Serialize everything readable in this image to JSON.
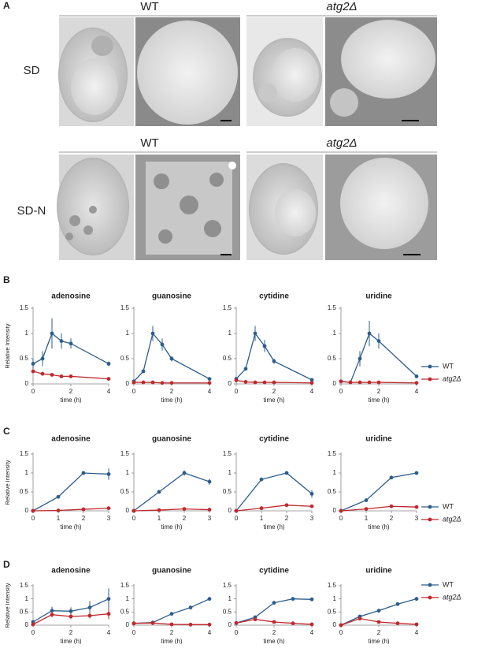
{
  "panel_a": {
    "label": "A",
    "rows": [
      {
        "condition": "SD",
        "groups": [
          "WT",
          "atg2Δ"
        ]
      },
      {
        "condition": "SD-N",
        "groups": [
          "WT",
          "atg2Δ"
        ]
      }
    ]
  },
  "panel_labels": [
    "B",
    "C",
    "D"
  ],
  "chart_data": [
    {
      "type": "line",
      "title": "adenosine",
      "y_label": "Relative Intensity",
      "x_label": "time (h)",
      "x": [
        0,
        0.5,
        1,
        1.5,
        2,
        4
      ],
      "xlim": [
        0,
        4
      ],
      "xticks": [
        0,
        2,
        4
      ],
      "ylim": [
        0,
        1.5
      ],
      "yticks": [
        0,
        0.5,
        1,
        1.5
      ],
      "series": [
        {
          "name": "WT",
          "color": "#2d5d8c",
          "values": [
            0.4,
            0.5,
            1.0,
            0.85,
            0.8,
            0.4
          ],
          "errors": [
            0.1,
            0.15,
            0.3,
            0.15,
            0.1,
            0.05
          ]
        },
        {
          "name": "atg2Δ",
          "color": "#c0282d",
          "values": [
            0.25,
            0.2,
            0.18,
            0.15,
            0.15,
            0.1
          ]
        }
      ]
    },
    {
      "type": "line",
      "title": "guanosine",
      "x_label": "time (h)",
      "x": [
        0,
        0.5,
        1,
        1.5,
        2,
        4
      ],
      "xlim": [
        0,
        4
      ],
      "xticks": [
        0,
        2,
        4
      ],
      "ylim": [
        0,
        1.5
      ],
      "yticks": [
        0,
        0.5,
        1,
        1.5
      ],
      "series": [
        {
          "name": "WT",
          "color": "#2d5d8c",
          "values": [
            0.05,
            0.25,
            1.0,
            0.78,
            0.5,
            0.1
          ],
          "errors": [
            0.02,
            0.03,
            0.15,
            0.12,
            0.05,
            0.02
          ]
        },
        {
          "name": "atg2Δ",
          "color": "#c0282d",
          "values": [
            0.03,
            0.03,
            0.03,
            0.02,
            0.02,
            0.02
          ]
        }
      ]
    },
    {
      "type": "line",
      "title": "cytidine",
      "x_label": "time (h)",
      "x": [
        0,
        0.5,
        1,
        1.5,
        2,
        4
      ],
      "xlim": [
        0,
        4
      ],
      "xticks": [
        0,
        2,
        4
      ],
      "ylim": [
        0,
        1.5
      ],
      "yticks": [
        0,
        0.5,
        1,
        1.5
      ],
      "series": [
        {
          "name": "WT",
          "color": "#2d5d8c",
          "values": [
            0.1,
            0.3,
            1.0,
            0.75,
            0.45,
            0.08
          ],
          "errors": [
            0.02,
            0.03,
            0.15,
            0.12,
            0.05,
            0.02
          ]
        },
        {
          "name": "atg2Δ",
          "color": "#c0282d",
          "values": [
            0.07,
            0.04,
            0.03,
            0.03,
            0.03,
            0.02
          ]
        }
      ]
    },
    {
      "type": "line",
      "title": "uridine",
      "x_label": "time (h)",
      "legend": "right",
      "x": [
        0,
        0.5,
        1,
        1.5,
        2,
        4
      ],
      "xlim": [
        0,
        4
      ],
      "xticks": [
        0,
        2,
        4
      ],
      "ylim": [
        0,
        1.5
      ],
      "yticks": [
        0,
        0.5,
        1,
        1.5
      ],
      "series": [
        {
          "name": "WT",
          "color": "#2d5d8c",
          "values": [
            0.05,
            0.03,
            0.5,
            1.0,
            0.85,
            0.15
          ],
          "errors": [
            0.02,
            0.02,
            0.15,
            0.25,
            0.15,
            0.03
          ]
        },
        {
          "name": "atg2Δ",
          "color": "#c0282d",
          "values": [
            0.05,
            0.03,
            0.03,
            0.03,
            0.03,
            0.02
          ]
        }
      ]
    },
    {
      "type": "line",
      "title": "adenosine",
      "y_label": "Relative Intensity",
      "x_label": "time (h)",
      "x": [
        0,
        1,
        2,
        3
      ],
      "xlim": [
        0,
        3
      ],
      "xticks": [
        0,
        1,
        2,
        3
      ],
      "ylim": [
        0,
        1.5
      ],
      "yticks": [
        0,
        0.5,
        1,
        1.5
      ],
      "series": [
        {
          "name": "WT",
          "color": "#2d5d8c",
          "values": [
            0,
            0.37,
            1.0,
            0.97
          ],
          "errors": [
            0,
            0.03,
            0.05,
            0.15
          ]
        },
        {
          "name": "atg2Δ",
          "color": "#c0282d",
          "values": [
            0,
            0.01,
            0.04,
            0.07
          ]
        }
      ]
    },
    {
      "type": "line",
      "title": "guanosine",
      "x_label": "time (h)",
      "x": [
        0,
        1,
        2,
        3
      ],
      "xlim": [
        0,
        3
      ],
      "xticks": [
        0,
        1,
        2,
        3
      ],
      "ylim": [
        0,
        1.5
      ],
      "yticks": [
        0,
        0.5,
        1,
        1.5
      ],
      "series": [
        {
          "name": "WT",
          "color": "#2d5d8c",
          "values": [
            0,
            0.5,
            1.0,
            0.77
          ],
          "errors": [
            0,
            0.02,
            0.07,
            0.08
          ]
        },
        {
          "name": "atg2Δ",
          "color": "#c0282d",
          "values": [
            0,
            0.02,
            0.05,
            0.03
          ]
        }
      ]
    },
    {
      "type": "line",
      "title": "cytidine",
      "x_label": "time (h)",
      "x": [
        0,
        1,
        2,
        3
      ],
      "xlim": [
        0,
        3
      ],
      "xticks": [
        0,
        1,
        2,
        3
      ],
      "ylim": [
        0,
        1.5
      ],
      "yticks": [
        0,
        0.5,
        1,
        1.5
      ],
      "series": [
        {
          "name": "WT",
          "color": "#2d5d8c",
          "values": [
            0,
            0.83,
            1.0,
            0.45
          ],
          "errors": [
            0,
            0.03,
            0.02,
            0.1
          ]
        },
        {
          "name": "atg2Δ",
          "color": "#c0282d",
          "values": [
            0,
            0.07,
            0.15,
            0.12
          ]
        }
      ]
    },
    {
      "type": "line",
      "title": "uridine",
      "x_label": "time (h)",
      "legend": "right",
      "x": [
        0,
        1,
        2,
        3
      ],
      "xlim": [
        0,
        3
      ],
      "xticks": [
        0,
        1,
        2,
        3
      ],
      "ylim": [
        0,
        1.5
      ],
      "yticks": [
        0,
        0.5,
        1,
        1.5
      ],
      "series": [
        {
          "name": "WT",
          "color": "#2d5d8c",
          "values": [
            0,
            0.28,
            0.88,
            1.0
          ],
          "errors": [
            0,
            0.02,
            0.05,
            0.03
          ]
        },
        {
          "name": "atg2Δ",
          "color": "#c0282d",
          "values": [
            0,
            0.05,
            0.12,
            0.1
          ]
        }
      ]
    },
    {
      "type": "line",
      "title": "adenosine",
      "y_label": "Relative Intensity",
      "x_label": "time (h)",
      "x": [
        0,
        1,
        2,
        3,
        4
      ],
      "xlim": [
        0,
        4
      ],
      "xticks": [
        0,
        2,
        4
      ],
      "ylim": [
        0,
        1.5
      ],
      "yticks": [
        0,
        0.5,
        1,
        1.5
      ],
      "series": [
        {
          "name": "WT",
          "color": "#2d5d8c",
          "values": [
            0.12,
            0.55,
            0.53,
            0.67,
            1.0
          ],
          "errors": [
            0.05,
            0.15,
            0.15,
            0.25,
            0.4
          ]
        },
        {
          "name": "atg2Δ",
          "color": "#c0282d",
          "values": [
            0.03,
            0.4,
            0.33,
            0.36,
            0.43
          ],
          "errors": [
            0.02,
            0.1,
            0.1,
            0.1,
            0.2
          ]
        }
      ]
    },
    {
      "type": "line",
      "title": "guanosine",
      "x_label": "time (h)",
      "x": [
        0,
        1,
        2,
        3,
        4
      ],
      "xlim": [
        0,
        4
      ],
      "xticks": [
        0,
        2,
        4
      ],
      "ylim": [
        0,
        1.5
      ],
      "yticks": [
        0,
        0.5,
        1,
        1.5
      ],
      "series": [
        {
          "name": "WT",
          "color": "#2d5d8c",
          "values": [
            0.07,
            0.1,
            0.43,
            0.67,
            1.0
          ],
          "errors": [
            0.02,
            0.03,
            0.05,
            0.03,
            0.03
          ]
        },
        {
          "name": "atg2Δ",
          "color": "#c0282d",
          "values": [
            0.07,
            0.08,
            0.03,
            0.02,
            0.02
          ]
        }
      ]
    },
    {
      "type": "line",
      "title": "cytidine",
      "x_label": "time (h)",
      "x": [
        0,
        1,
        2,
        3,
        4
      ],
      "xlim": [
        0,
        4
      ],
      "xticks": [
        0,
        2,
        4
      ],
      "ylim": [
        0,
        1.5
      ],
      "yticks": [
        0,
        0.5,
        1,
        1.5
      ],
      "series": [
        {
          "name": "WT",
          "color": "#2d5d8c",
          "values": [
            0.08,
            0.3,
            0.85,
            1.0,
            0.98
          ],
          "errors": [
            0.02,
            0.05,
            0.05,
            0.04,
            0.07
          ]
        },
        {
          "name": "atg2Δ",
          "color": "#c0282d",
          "values": [
            0.08,
            0.22,
            0.12,
            0.07,
            0.03
          ]
        }
      ]
    },
    {
      "type": "line",
      "title": "uridine",
      "x_label": "time (h)",
      "legend": "right",
      "x": [
        0,
        1,
        2,
        3,
        4
      ],
      "xlim": [
        0,
        4
      ],
      "xticks": [
        0,
        2,
        4
      ],
      "ylim": [
        0,
        1.5
      ],
      "yticks": [
        0,
        0.5,
        1,
        1.5
      ],
      "series": [
        {
          "name": "WT",
          "color": "#2d5d8c",
          "values": [
            0,
            0.33,
            0.55,
            0.8,
            1.0
          ],
          "errors": [
            0,
            0.02,
            0.02,
            0.02,
            0.02
          ]
        },
        {
          "name": "atg2Δ",
          "color": "#c0282d",
          "values": [
            0,
            0.25,
            0.12,
            0.07,
            0.03
          ]
        }
      ]
    }
  ]
}
